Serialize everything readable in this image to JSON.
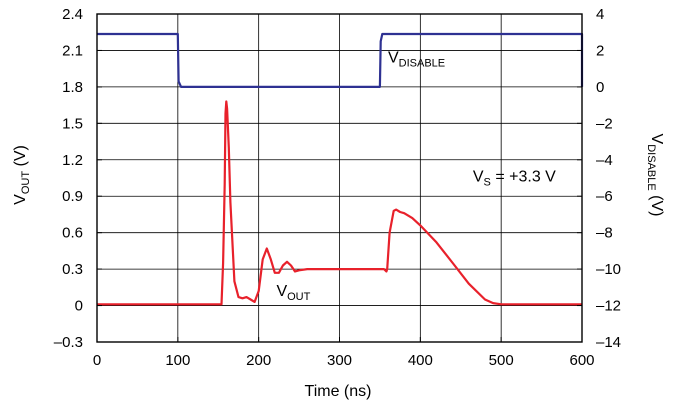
{
  "chart_data": {
    "type": "line",
    "xlabel": "Time (ns)",
    "ylabel_main": "V",
    "ylabel_sub": "OUT",
    "ylabel_unit": " (V)",
    "y2label_main": "V",
    "y2label_sub": "DISABLE",
    "y2label_unit": " (V)",
    "xlim": [
      0,
      600
    ],
    "ylim": [
      -0.3,
      2.4
    ],
    "y2lim": [
      -14,
      4
    ],
    "x_ticks": [
      0,
      100,
      200,
      300,
      400,
      500,
      600
    ],
    "x_tick_labels": [
      "0",
      "100",
      "200",
      "300",
      "400",
      "500",
      "600"
    ],
    "y_ticks": [
      -0.3,
      0,
      0.3,
      0.6,
      0.9,
      1.2,
      1.5,
      1.8,
      2.1,
      2.4
    ],
    "y_tick_labels": [
      "–0.3",
      "0",
      "0.3",
      "0.6",
      "0.9",
      "1.2",
      "1.5",
      "1.8",
      "2.1",
      "2.4"
    ],
    "y2_ticks": [
      -14,
      -12,
      -10,
      -8,
      -6,
      -4,
      -2,
      0,
      2,
      4
    ],
    "y2_tick_labels": [
      "–14",
      "–12",
      "–10",
      "–8",
      "–6",
      "–4",
      "–2",
      "0",
      "2",
      "4"
    ],
    "grid": true,
    "series": [
      {
        "label_main": "V",
        "label_sub": "OUT",
        "axis": "left",
        "color": "#e8212b",
        "x": [
          0,
          100,
          150,
          154,
          156,
          158,
          159,
          160,
          161,
          163,
          165,
          170,
          175,
          180,
          185,
          190,
          195,
          200,
          205,
          210,
          215,
          220,
          225,
          230,
          235,
          240,
          245,
          250,
          260,
          280,
          300,
          330,
          355,
          358,
          359,
          362,
          367,
          370,
          375,
          380,
          390,
          400,
          420,
          440,
          460,
          480,
          490,
          500,
          530,
          560,
          600
        ],
        "y": [
          0.01,
          0.01,
          0.01,
          0.01,
          0.35,
          1.0,
          1.58,
          1.68,
          1.62,
          1.3,
          0.85,
          0.2,
          0.07,
          0.06,
          0.07,
          0.05,
          0.03,
          0.12,
          0.38,
          0.47,
          0.38,
          0.27,
          0.27,
          0.33,
          0.36,
          0.33,
          0.28,
          0.29,
          0.3,
          0.3,
          0.3,
          0.3,
          0.3,
          0.28,
          0.3,
          0.6,
          0.78,
          0.79,
          0.77,
          0.76,
          0.72,
          0.66,
          0.52,
          0.35,
          0.18,
          0.05,
          0.02,
          0.01,
          0.01,
          0.01,
          0.01
        ]
      },
      {
        "label_main": "V",
        "label_sub": "DISABLE",
        "axis": "right",
        "color": "#2e3192",
        "x": [
          0,
          100,
          101,
          104,
          350,
          351,
          353,
          600,
          601
        ],
        "y": [
          2.9,
          2.9,
          0.3,
          0.0,
          0.0,
          2.5,
          2.9,
          2.9,
          0.0
        ]
      }
    ],
    "annotations": [
      {
        "main": "V",
        "sub": "DISABLE",
        "rest": "",
        "x": 360,
        "y": 2.0
      },
      {
        "main": "V",
        "sub": "OUT",
        "rest": "",
        "x": 222,
        "y": 0.08
      },
      {
        "main": "V",
        "sub": "S",
        "rest": " = +3.3 V",
        "x": 465,
        "y": 1.02
      }
    ]
  }
}
